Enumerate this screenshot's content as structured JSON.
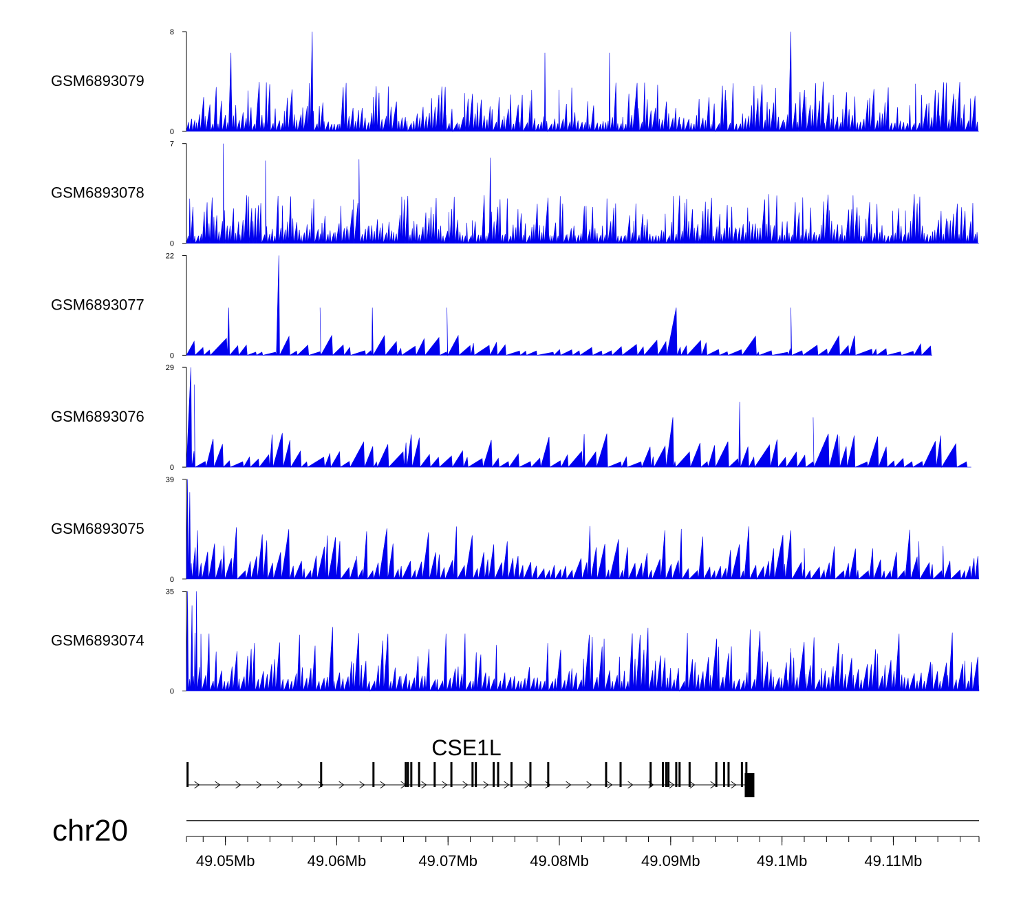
{
  "colors": {
    "signal": "#0000ee",
    "axis": "#000000",
    "gene": "#000000"
  },
  "chart_data": {
    "type": "area",
    "title": "",
    "chromosome": "chr20",
    "x_range_mb": [
      49.0465,
      49.1177
    ],
    "tracks": [
      {
        "name": "GSM6893079",
        "ymax": 8,
        "ymin": 0,
        "ymax_label": "8",
        "ymin_label": "0",
        "n_peaks": 260,
        "peak_share": 0.5,
        "tall_peaks": [
          [
            49.0578,
            8
          ],
          [
            49.1008,
            8
          ],
          [
            49.0787,
            6.3
          ],
          [
            49.0505,
            6.3
          ],
          [
            49.0845,
            6.3
          ]
        ],
        "gaps": []
      },
      {
        "name": "GSM6893078",
        "ymax": 7,
        "ymin": 0,
        "ymax_label": "7",
        "ymin_label": "0",
        "n_peaks": 300,
        "peak_share": 0.5,
        "tall_peaks": [
          [
            49.0498,
            7
          ],
          [
            49.0536,
            5.8
          ],
          [
            49.062,
            5.9
          ],
          [
            49.0738,
            6.0
          ]
        ],
        "gaps": []
      },
      {
        "name": "GSM6893077",
        "ymax": 22,
        "ymin": 0,
        "ymax_label": "22",
        "ymin_label": "0",
        "n_peaks": 75,
        "peak_share": 0.2,
        "tall_peaks": [
          [
            49.0548,
            22
          ],
          [
            49.0503,
            10.5
          ],
          [
            49.0585,
            10.5
          ],
          [
            49.0632,
            10.5
          ],
          [
            49.0699,
            10.5
          ],
          [
            49.0905,
            10.5
          ],
          [
            49.1008,
            10.5
          ]
        ],
        "gaps": [
          [
            49.1135,
            49.1177
          ]
        ]
      },
      {
        "name": "GSM6893076",
        "ymax": 29,
        "ymin": 0,
        "ymax_label": "29",
        "ymin_label": "0",
        "n_peaks": 80,
        "peak_share": 0.35,
        "tall_peaks": [
          [
            49.0469,
            29
          ],
          [
            49.0472,
            24
          ],
          [
            49.0902,
            14.5
          ],
          [
            49.0962,
            19
          ],
          [
            49.1028,
            14.5
          ],
          [
            49.0542,
            9.5
          ],
          [
            49.0667,
            9.5
          ],
          [
            49.105,
            9.5
          ]
        ],
        "gaps": [
          [
            49.117,
            49.1177
          ]
        ]
      },
      {
        "name": "GSM6893075",
        "ymax": 39,
        "ymin": 0,
        "ymax_label": "39",
        "ymin_label": "0",
        "n_peaks": 130,
        "peak_share": 0.55,
        "tall_peaks": [
          [
            49.0466,
            39
          ],
          [
            49.0468,
            34
          ],
          [
            49.0475,
            19
          ],
          [
            49.1008,
            19
          ],
          [
            49.102,
            12
          ],
          [
            49.0618,
            9
          ],
          [
            49.1176,
            9
          ]
        ],
        "gaps": []
      },
      {
        "name": "GSM6893074",
        "ymax": 35,
        "ymin": 0,
        "ymax_label": "35",
        "ymin_label": "0",
        "n_peaks": 200,
        "peak_share": 0.65,
        "tall_peaks": [
          [
            49.0466,
            35
          ],
          [
            49.047,
            30
          ],
          [
            49.0474,
            35
          ],
          [
            49.0478,
            20
          ],
          [
            49.0854,
            12
          ],
          [
            49.1008,
            15
          ],
          [
            49.1176,
            12
          ],
          [
            49.1004,
            10
          ]
        ],
        "gaps": []
      }
    ],
    "gene": {
      "name": "CSE1L",
      "strand": "+",
      "start_mb": 49.0466,
      "end_mb": 49.0969,
      "exons_mb": [
        49.0466,
        49.0586,
        49.0633,
        49.0662,
        49.0664,
        49.0667,
        49.0674,
        49.0688,
        49.0703,
        49.0722,
        49.0725,
        49.0741,
        49.0745,
        49.0757,
        49.0774,
        49.079,
        49.0842,
        49.0855,
        49.0882,
        49.0893,
        49.0896,
        49.0898,
        49.0905,
        49.0908,
        49.0917,
        49.0941,
        49.0948,
        49.0952,
        49.0964,
        49.0968
      ]
    },
    "xaxis": {
      "major_ticks_mb": [
        49.05,
        49.06,
        49.07,
        49.08,
        49.09,
        49.1,
        49.11
      ],
      "major_labels": [
        "49.05Mb",
        "49.06Mb",
        "49.07Mb",
        "49.08Mb",
        "49.09Mb",
        "49.1Mb",
        "49.11Mb"
      ],
      "minor_step_mb": 0.002
    }
  }
}
